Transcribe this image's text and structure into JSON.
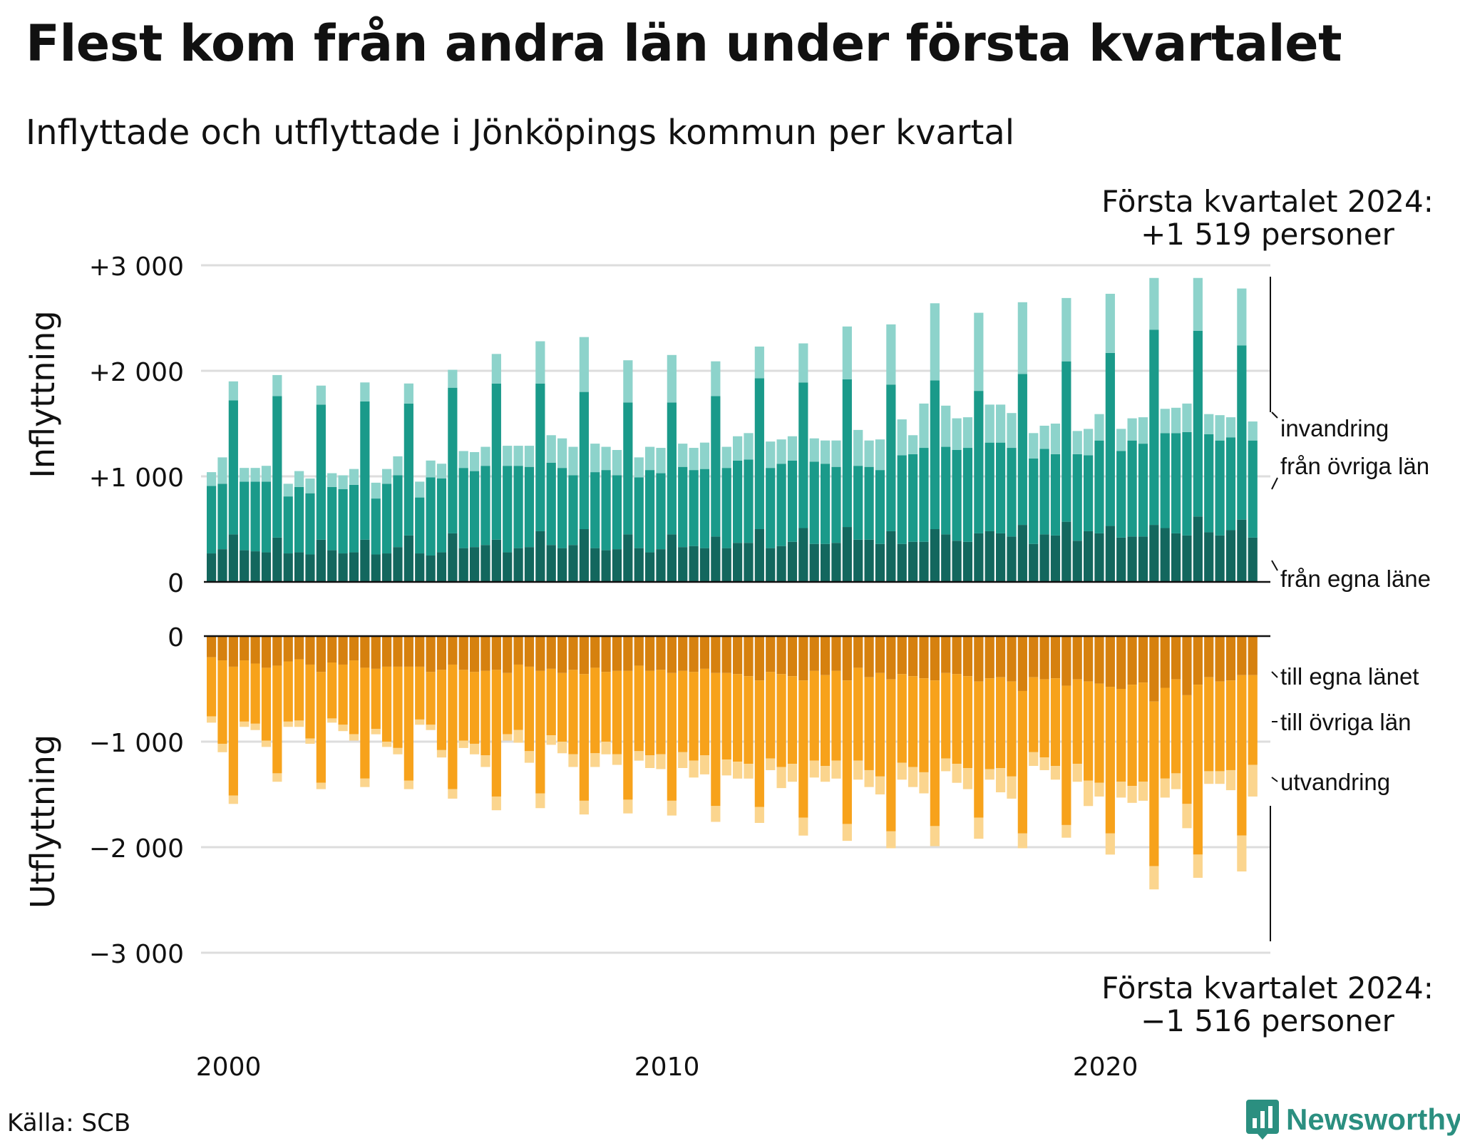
{
  "title": "Flest kom från andra län under första kvartalet",
  "subtitle": "Inflyttade och utflyttade i Jönköpings kommun per kvartal",
  "source": "Källa: SCB",
  "brand": "Newsworthy",
  "annotation_top": {
    "line1": "Första kvartalet 2024:",
    "line2": "+1 519 personer"
  },
  "annotation_bottom": {
    "line1": "Första kvartalet 2024:",
    "line2": "−1 516 personer"
  },
  "colors": {
    "in_own": "#13675e",
    "in_other": "#1a9a8a",
    "in_immig": "#8dd3cb",
    "out_own": "#d6810f",
    "out_other": "#f7a21b",
    "out_emig": "#fbd58e",
    "grid": "#dddddd",
    "text": "#111111",
    "brand": "#2b8f80"
  },
  "chart_data": [
    {
      "type": "bar",
      "stacked": true,
      "panel": "top",
      "ylabel": "Inflyttning",
      "ylim": [
        0,
        3000
      ],
      "yticks": [
        0,
        1000,
        2000,
        3000
      ],
      "ytick_labels": [
        "0",
        "+1 000",
        "+2 000",
        "+3 000"
      ],
      "x_start": "2000 Q1",
      "x_end": "2024 Q1",
      "xticks": [
        2000,
        2010,
        2020
      ],
      "xtick_labels": [
        "2000",
        "2010",
        "2020"
      ],
      "legend_position": "right",
      "series": [
        {
          "name": "från egna läne",
          "color_key": "in_own",
          "values": [
            270,
            310,
            450,
            300,
            290,
            280,
            420,
            270,
            280,
            260,
            400,
            300,
            270,
            280,
            400,
            260,
            270,
            330,
            440,
            270,
            250,
            280,
            460,
            320,
            330,
            350,
            400,
            280,
            320,
            330,
            480,
            350,
            320,
            350,
            500,
            320,
            300,
            310,
            450,
            320,
            280,
            310,
            450,
            330,
            340,
            320,
            430,
            320,
            370,
            370,
            500,
            320,
            340,
            380,
            510,
            360,
            360,
            370,
            520,
            400,
            400,
            360,
            480,
            360,
            380,
            380,
            500,
            450,
            390,
            380,
            460,
            480,
            460,
            430,
            540,
            360,
            450,
            440,
            570,
            390,
            480,
            460,
            530,
            420,
            430,
            430,
            540,
            510,
            460,
            440,
            620,
            470,
            440,
            490,
            590,
            420
          ]
        },
        {
          "name": "från övriga län",
          "color_key": "in_other",
          "values": [
            640,
            620,
            1270,
            650,
            660,
            670,
            1340,
            540,
            620,
            580,
            1280,
            600,
            610,
            640,
            1310,
            530,
            660,
            680,
            1250,
            530,
            740,
            700,
            1380,
            760,
            720,
            750,
            1480,
            820,
            780,
            760,
            1400,
            780,
            760,
            660,
            1300,
            720,
            760,
            700,
            1250,
            670,
            780,
            720,
            1250,
            760,
            720,
            750,
            1330,
            760,
            780,
            790,
            1430,
            760,
            780,
            770,
            1380,
            780,
            760,
            720,
            1400,
            700,
            690,
            700,
            1390,
            840,
            830,
            890,
            1410,
            830,
            860,
            890,
            1350,
            840,
            860,
            840,
            1430,
            810,
            810,
            770,
            1520,
            820,
            720,
            880,
            1640,
            820,
            910,
            880,
            1850,
            900,
            950,
            980,
            1760,
            930,
            900,
            880,
            1650,
            920
          ]
        },
        {
          "name": "invandring",
          "color_key": "in_immig",
          "values": [
            130,
            250,
            180,
            130,
            130,
            150,
            200,
            120,
            150,
            140,
            180,
            130,
            130,
            150,
            180,
            150,
            140,
            180,
            190,
            150,
            160,
            140,
            170,
            160,
            180,
            180,
            280,
            190,
            190,
            200,
            400,
            260,
            280,
            270,
            520,
            270,
            220,
            240,
            400,
            190,
            220,
            240,
            450,
            220,
            210,
            250,
            330,
            200,
            230,
            250,
            300,
            250,
            230,
            230,
            370,
            220,
            220,
            250,
            500,
            340,
            250,
            290,
            570,
            340,
            180,
            420,
            730,
            390,
            300,
            290,
            740,
            360,
            360,
            330,
            680,
            240,
            220,
            290,
            600,
            220,
            250,
            250,
            560,
            210,
            210,
            250,
            490,
            230,
            240,
            270,
            500,
            190,
            240,
            190,
            540,
            180
          ]
        }
      ]
    },
    {
      "type": "bar",
      "stacked": true,
      "panel": "bottom",
      "ylabel": "Utflyttning",
      "ylim": [
        -3000,
        0
      ],
      "yticks": [
        0,
        -1000,
        -2000,
        -3000
      ],
      "ytick_labels": [
        "0",
        "−1 000",
        "−2 000",
        "−3 000"
      ],
      "x_start": "2000 Q1",
      "x_end": "2024 Q1",
      "legend_position": "right",
      "series": [
        {
          "name": "till egna länet",
          "color_key": "out_own",
          "values": [
            -200,
            -230,
            -290,
            -230,
            -260,
            -300,
            -280,
            -240,
            -220,
            -270,
            -340,
            -250,
            -270,
            -230,
            -300,
            -310,
            -290,
            -290,
            -290,
            -290,
            -340,
            -320,
            -270,
            -320,
            -340,
            -330,
            -320,
            -350,
            -270,
            -290,
            -330,
            -310,
            -350,
            -320,
            -360,
            -300,
            -340,
            -330,
            -330,
            -280,
            -330,
            -320,
            -350,
            -330,
            -340,
            -310,
            -350,
            -350,
            -360,
            -380,
            -420,
            -340,
            -360,
            -380,
            -420,
            -330,
            -370,
            -330,
            -420,
            -300,
            -390,
            -350,
            -410,
            -360,
            -380,
            -400,
            -420,
            -350,
            -360,
            -380,
            -430,
            -400,
            -390,
            -430,
            -520,
            -390,
            -410,
            -400,
            -470,
            -410,
            -430,
            -450,
            -480,
            -500,
            -460,
            -440,
            -620,
            -490,
            -410,
            -560,
            -460,
            -390,
            -430,
            -420,
            -370,
            -370
          ]
        },
        {
          "name": "till övriga län",
          "color_key": "out_other",
          "values": [
            -560,
            -790,
            -1220,
            -580,
            -570,
            -690,
            -1020,
            -570,
            -580,
            -700,
            -1050,
            -530,
            -570,
            -700,
            -1050,
            -570,
            -710,
            -770,
            -1080,
            -500,
            -500,
            -760,
            -1180,
            -670,
            -680,
            -800,
            -1200,
            -580,
            -620,
            -800,
            -1160,
            -630,
            -650,
            -800,
            -1200,
            -810,
            -660,
            -790,
            -1220,
            -810,
            -800,
            -800,
            -1210,
            -770,
            -840,
            -820,
            -1260,
            -820,
            -830,
            -830,
            -1200,
            -820,
            -880,
            -830,
            -1300,
            -850,
            -860,
            -850,
            -1360,
            -880,
            -880,
            -980,
            -1440,
            -840,
            -860,
            -890,
            -1380,
            -810,
            -850,
            -870,
            -1290,
            -860,
            -860,
            -900,
            -1350,
            -710,
            -740,
            -830,
            -1320,
            -800,
            -940,
            -940,
            -1390,
            -880,
            -960,
            -940,
            -1560,
            -860,
            -890,
            -1030,
            -1610,
            -890,
            -850,
            -850,
            -1520,
            -850
          ]
        },
        {
          "name": "utvandring",
          "color_key": "out_emig",
          "values": [
            -60,
            -80,
            -80,
            -50,
            -60,
            -60,
            -80,
            -50,
            -60,
            -50,
            -60,
            -40,
            -60,
            -60,
            -80,
            -50,
            -50,
            -60,
            -80,
            -50,
            -50,
            -70,
            -90,
            -70,
            -100,
            -110,
            -130,
            -60,
            -120,
            -110,
            -140,
            -90,
            -110,
            -120,
            -130,
            -130,
            -120,
            -100,
            -130,
            -90,
            -120,
            -140,
            -140,
            -150,
            -160,
            -180,
            -150,
            -150,
            -160,
            -140,
            -150,
            -110,
            -200,
            -170,
            -170,
            -160,
            -150,
            -170,
            -160,
            -180,
            -160,
            -170,
            -160,
            -160,
            -190,
            -200,
            -190,
            -120,
            -180,
            -200,
            -200,
            -100,
            -230,
            -210,
            -140,
            -130,
            -120,
            -130,
            -120,
            -170,
            -240,
            -130,
            -200,
            -150,
            -160,
            -180,
            -220,
            -180,
            -150,
            -230,
            -220,
            -120,
            -120,
            -190,
            -340,
            -300
          ]
        }
      ]
    }
  ]
}
